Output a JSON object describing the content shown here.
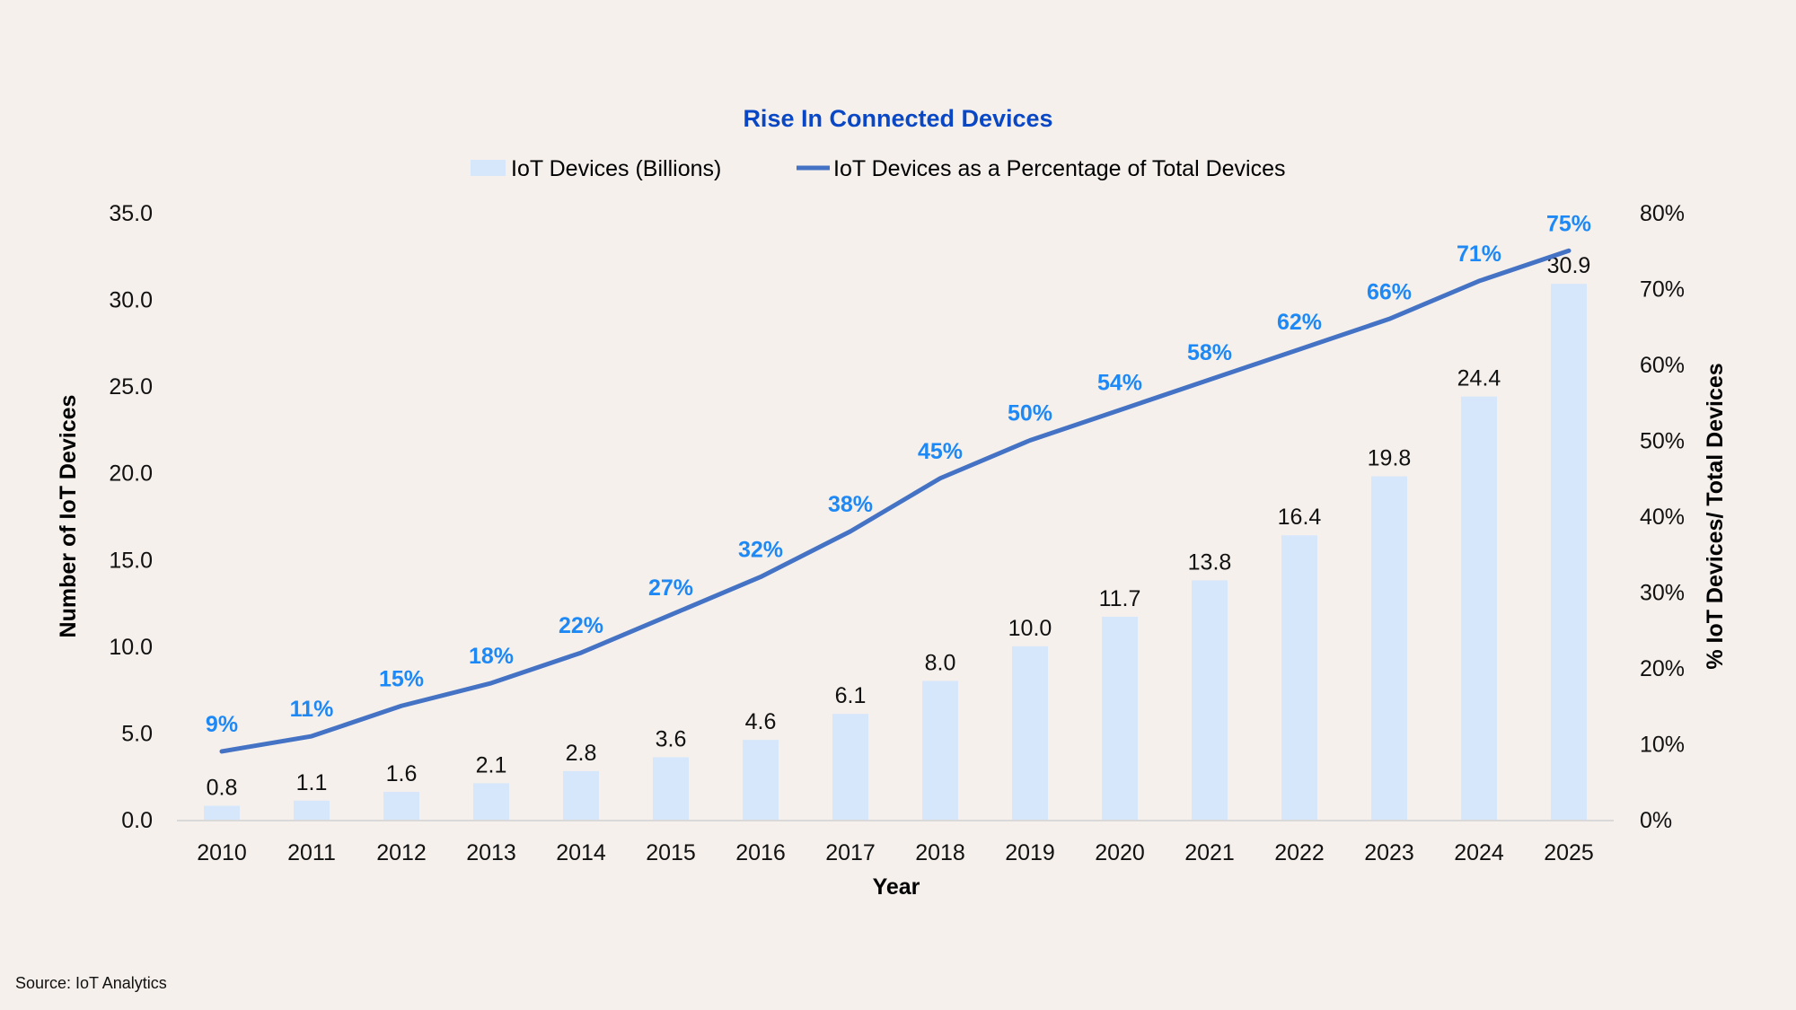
{
  "colors": {
    "background": "#f5f0ec",
    "title": "#0a47c4",
    "bar": "#d6e6fb",
    "line": "#4472c4",
    "pct_label": "#1e88f5",
    "axis_line": "#d9d9d9",
    "text": "#111111"
  },
  "source": "Source: IoT Analytics",
  "chart_data": {
    "type": "bar",
    "title": "Rise In Connected Devices",
    "xlabel": "Year",
    "ylabel": "Number of IoT Devices",
    "y2label": "% IoT Devices/ Total Devices",
    "categories": [
      "2010",
      "2011",
      "2012",
      "2013",
      "2014",
      "2015",
      "2016",
      "2017",
      "2018",
      "2019",
      "2020",
      "2021",
      "2022",
      "2023",
      "2024",
      "2025"
    ],
    "ylim": [
      0,
      35
    ],
    "y_ticks": [
      "0.0",
      "5.0",
      "10.0",
      "15.0",
      "20.0",
      "25.0",
      "30.0",
      "35.0"
    ],
    "y2lim": [
      0,
      80
    ],
    "y2_ticks": [
      "0%",
      "10%",
      "20%",
      "30%",
      "40%",
      "50%",
      "60%",
      "70%",
      "80%"
    ],
    "grid": false,
    "legend_position": "top-center",
    "series": [
      {
        "name": "IoT Devices (Billions)",
        "type": "bar",
        "axis": "left",
        "values": [
          0.8,
          1.1,
          1.6,
          2.1,
          2.8,
          3.6,
          4.6,
          6.1,
          8.0,
          10.0,
          11.7,
          13.8,
          16.4,
          19.8,
          24.4,
          30.9
        ],
        "labels": [
          "0.8",
          "1.1",
          "1.6",
          "2.1",
          "2.8",
          "3.6",
          "4.6",
          "6.1",
          "8.0",
          "10.0",
          "11.7",
          "13.8",
          "16.4",
          "19.8",
          "24.4",
          "30.9"
        ]
      },
      {
        "name": "IoT Devices as a Percentage of Total Devices",
        "type": "line",
        "axis": "right",
        "values": [
          9,
          11,
          15,
          18,
          22,
          27,
          32,
          38,
          45,
          50,
          54,
          58,
          62,
          66,
          71,
          75
        ],
        "labels": [
          "9%",
          "11%",
          "15%",
          "18%",
          "22%",
          "27%",
          "32%",
          "38%",
          "45%",
          "50%",
          "54%",
          "58%",
          "62%",
          "66%",
          "71%",
          "75%"
        ]
      }
    ]
  }
}
